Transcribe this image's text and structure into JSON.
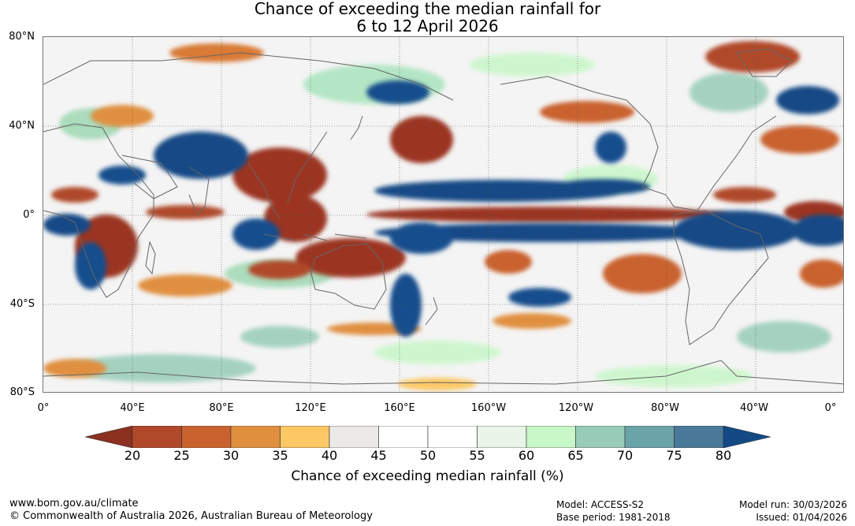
{
  "title_line1": "Chance of exceeding the median rainfall for",
  "title_line2": "6 to 12 April 2026",
  "lat_labels": [
    "80°N",
    "40°N",
    "0°",
    "40°S",
    "80°S"
  ],
  "lon_labels": [
    "0°",
    "40°E",
    "80°E",
    "120°E",
    "160°E",
    "160°W",
    "120°W",
    "80°W",
    "40°W",
    "0°"
  ],
  "colorbar": {
    "ticks": [
      "20",
      "25",
      "30",
      "35",
      "40",
      "45",
      "50",
      "55",
      "60",
      "65",
      "70",
      "75",
      "80"
    ],
    "colors": [
      "#9b3521",
      "#b0482a",
      "#c9622f",
      "#e08f3f",
      "#fcc865",
      "#eceae8",
      "#ffffff",
      "#ffffff",
      "#e8f5e8",
      "#c8f7c8",
      "#98ccb8",
      "#6aa3a8",
      "#4a7898",
      "#184e8c"
    ],
    "low_color": "#8c3020",
    "high_color": "#134a85",
    "title": "Chance of exceeding median rainfall (%)"
  },
  "footer": {
    "website": "www.bom.gov.au/climate",
    "copyright": "© Commonwealth of Australia 2026, Australian Bureau of Meteorology",
    "model": "Model: ACCESS-S2",
    "base_period": "Base period: 1981-2018",
    "model_run": "Model run: 30/03/2026",
    "issued": "Issued: 01/04/2026"
  }
}
